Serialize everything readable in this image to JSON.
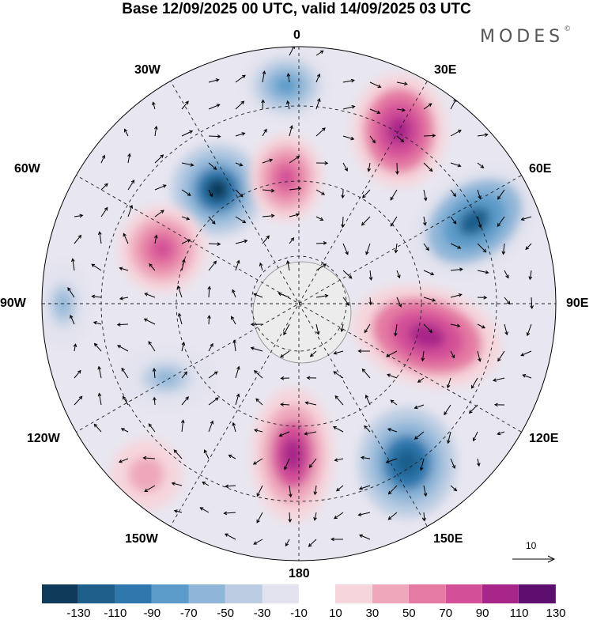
{
  "title": "Base 12/09/2025 00 UTC, valid 14/09/2025 03 UTC",
  "brand": {
    "name": "MODES",
    "mark": "©"
  },
  "longitude_labels": {
    "lon_0": "0",
    "lon_30e": "30E",
    "lon_60e": "60E",
    "lon_90e": "90E",
    "lon_120e": "120E",
    "lon_150e": "150E",
    "lon_180": "180",
    "lon_150w": "150W",
    "lon_120w": "120W",
    "lon_90w": "90W",
    "lon_60w": "60W",
    "lon_30w": "30W"
  },
  "vector_scale": {
    "value": "10"
  },
  "colorbar": {
    "ticks": [
      "-130",
      "-110",
      "-90",
      "-70",
      "-50",
      "-30",
      "-10",
      "10",
      "30",
      "50",
      "70",
      "90",
      "110",
      "130"
    ],
    "colors": [
      "#0f3a5a",
      "#1e5f8c",
      "#2f78ae",
      "#5b9bc9",
      "#8fb6d8",
      "#bccde3",
      "#e2e3ee",
      "#ffffff",
      "#f6d6dc",
      "#eea7bb",
      "#e57aa3",
      "#d34f98",
      "#a8268a",
      "#5c0f6e"
    ]
  },
  "map": {
    "center": "south pole",
    "anomalies": [
      {
        "id": "a1",
        "value": 110
      },
      {
        "id": "a2",
        "value": -110
      },
      {
        "id": "a3",
        "value": 110
      },
      {
        "id": "a4",
        "value": -130
      },
      {
        "id": "a5",
        "value": 90
      },
      {
        "id": "a6",
        "value": -70
      },
      {
        "id": "a7",
        "value": 100
      },
      {
        "id": "a8",
        "value": -120
      },
      {
        "id": "a9",
        "value": 90
      },
      {
        "id": "a10",
        "value": -50
      },
      {
        "id": "a11",
        "value": -50
      },
      {
        "id": "a12",
        "value": 50
      }
    ]
  }
}
